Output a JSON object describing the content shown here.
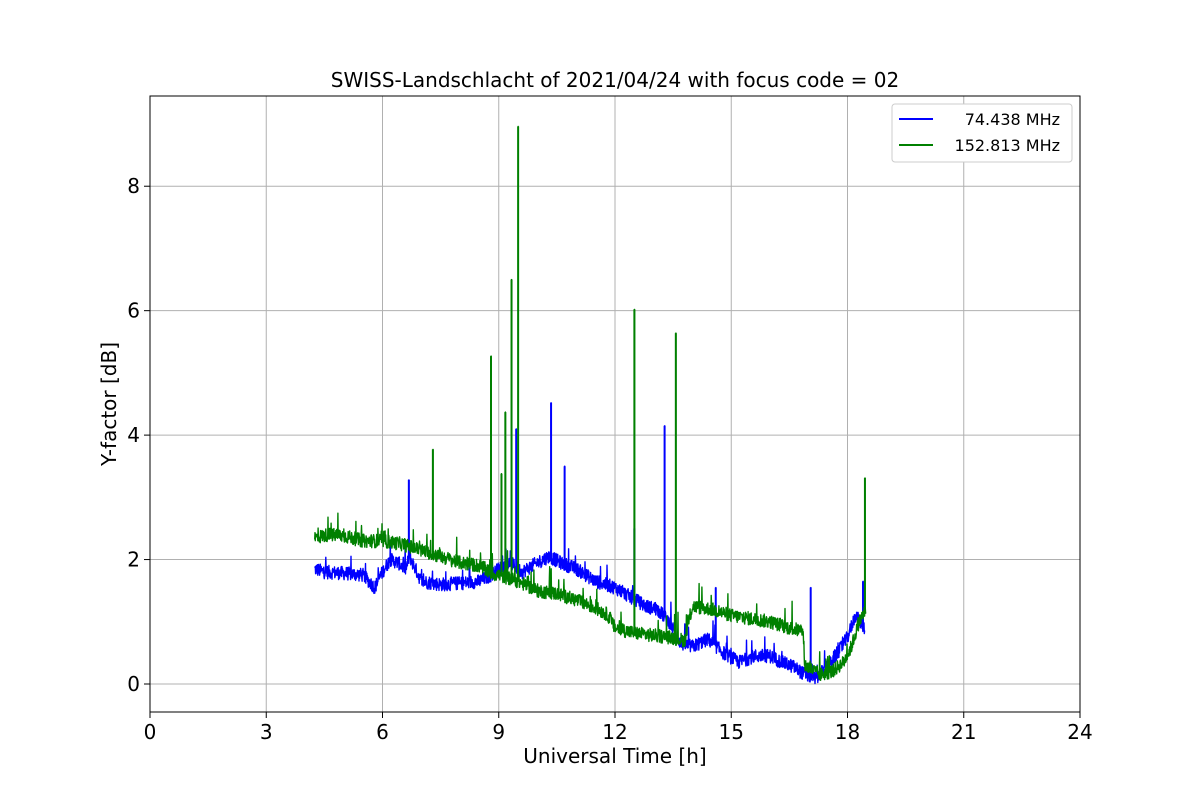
{
  "chart_data": {
    "type": "line",
    "title": "SWISS-Landschlacht of 2021/04/24 with focus code = 02",
    "xlabel": "Universal Time [h]",
    "ylabel": "Y-factor [dB]",
    "xlim": [
      0,
      24
    ],
    "ylim": [
      -0.45,
      9.45
    ],
    "xticks": [
      0,
      3,
      6,
      9,
      12,
      15,
      18,
      21,
      24
    ],
    "yticks": [
      0,
      2,
      4,
      6,
      8
    ],
    "grid": true,
    "legend_position": "top-right",
    "series": [
      {
        "name": "74.438 MHz",
        "color": "#0000ff",
        "points": [
          [
            4.25,
            1.85
          ],
          [
            4.5,
            1.8
          ],
          [
            5.0,
            1.78
          ],
          [
            5.5,
            1.75
          ],
          [
            5.8,
            1.55
          ],
          [
            6.0,
            1.8
          ],
          [
            6.2,
            2.0
          ],
          [
            6.4,
            1.95
          ],
          [
            6.6,
            1.85
          ],
          [
            6.7,
            2.05
          ],
          [
            7.0,
            1.65
          ],
          [
            7.5,
            1.6
          ],
          [
            8.0,
            1.62
          ],
          [
            8.5,
            1.65
          ],
          [
            8.8,
            1.75
          ],
          [
            9.0,
            1.85
          ],
          [
            9.3,
            1.95
          ],
          [
            9.6,
            1.8
          ],
          [
            10.0,
            1.95
          ],
          [
            10.3,
            2.05
          ],
          [
            10.6,
            1.95
          ],
          [
            11.0,
            1.85
          ],
          [
            11.5,
            1.65
          ],
          [
            12.0,
            1.55
          ],
          [
            12.4,
            1.4
          ],
          [
            12.8,
            1.25
          ],
          [
            13.1,
            1.2
          ],
          [
            13.4,
            1.0
          ],
          [
            13.7,
            0.65
          ],
          [
            14.0,
            0.6
          ],
          [
            14.4,
            0.72
          ],
          [
            14.8,
            0.5
          ],
          [
            15.2,
            0.35
          ],
          [
            15.6,
            0.45
          ],
          [
            16.0,
            0.45
          ],
          [
            16.3,
            0.35
          ],
          [
            16.6,
            0.28
          ],
          [
            16.9,
            0.15
          ],
          [
            17.2,
            0.1
          ],
          [
            17.5,
            0.3
          ],
          [
            17.8,
            0.55
          ],
          [
            18.0,
            0.75
          ],
          [
            18.2,
            1.1
          ],
          [
            18.45,
            0.9
          ]
        ],
        "spikes": [
          [
            6.68,
            3.28
          ],
          [
            9.45,
            4.1
          ],
          [
            10.35,
            4.52
          ],
          [
            10.7,
            3.5
          ],
          [
            12.5,
            2.5
          ],
          [
            13.28,
            4.15
          ],
          [
            14.6,
            1.55
          ],
          [
            17.05,
            1.55
          ],
          [
            18.4,
            1.65
          ]
        ]
      },
      {
        "name": "152.813 MHz",
        "color": "#008000",
        "points": [
          [
            4.25,
            2.35
          ],
          [
            4.6,
            2.4
          ],
          [
            5.0,
            2.38
          ],
          [
            5.5,
            2.3
          ],
          [
            6.0,
            2.3
          ],
          [
            6.5,
            2.25
          ],
          [
            7.0,
            2.15
          ],
          [
            7.5,
            2.05
          ],
          [
            8.0,
            1.95
          ],
          [
            8.5,
            1.9
          ],
          [
            8.8,
            1.78
          ],
          [
            9.0,
            1.75
          ],
          [
            9.5,
            1.65
          ],
          [
            10.0,
            1.5
          ],
          [
            10.5,
            1.45
          ],
          [
            11.0,
            1.35
          ],
          [
            11.5,
            1.22
          ],
          [
            11.8,
            1.12
          ],
          [
            12.0,
            0.9
          ],
          [
            12.5,
            0.82
          ],
          [
            13.0,
            0.78
          ],
          [
            13.4,
            0.75
          ],
          [
            13.8,
            0.7
          ],
          [
            14.0,
            1.25
          ],
          [
            14.5,
            1.2
          ],
          [
            15.0,
            1.1
          ],
          [
            15.5,
            1.05
          ],
          [
            16.0,
            1.0
          ],
          [
            16.5,
            0.9
          ],
          [
            16.85,
            0.85
          ],
          [
            16.9,
            0.3
          ],
          [
            17.3,
            0.15
          ],
          [
            17.6,
            0.2
          ],
          [
            17.9,
            0.35
          ],
          [
            18.1,
            0.6
          ],
          [
            18.3,
            1.0
          ],
          [
            18.48,
            1.2
          ]
        ],
        "spikes": [
          [
            7.3,
            3.77
          ],
          [
            8.8,
            5.27
          ],
          [
            9.07,
            3.38
          ],
          [
            9.17,
            4.37
          ],
          [
            9.33,
            6.5
          ],
          [
            9.5,
            8.96
          ],
          [
            12.5,
            6.02
          ],
          [
            13.57,
            5.64
          ],
          [
            18.45,
            3.31
          ]
        ]
      }
    ]
  }
}
